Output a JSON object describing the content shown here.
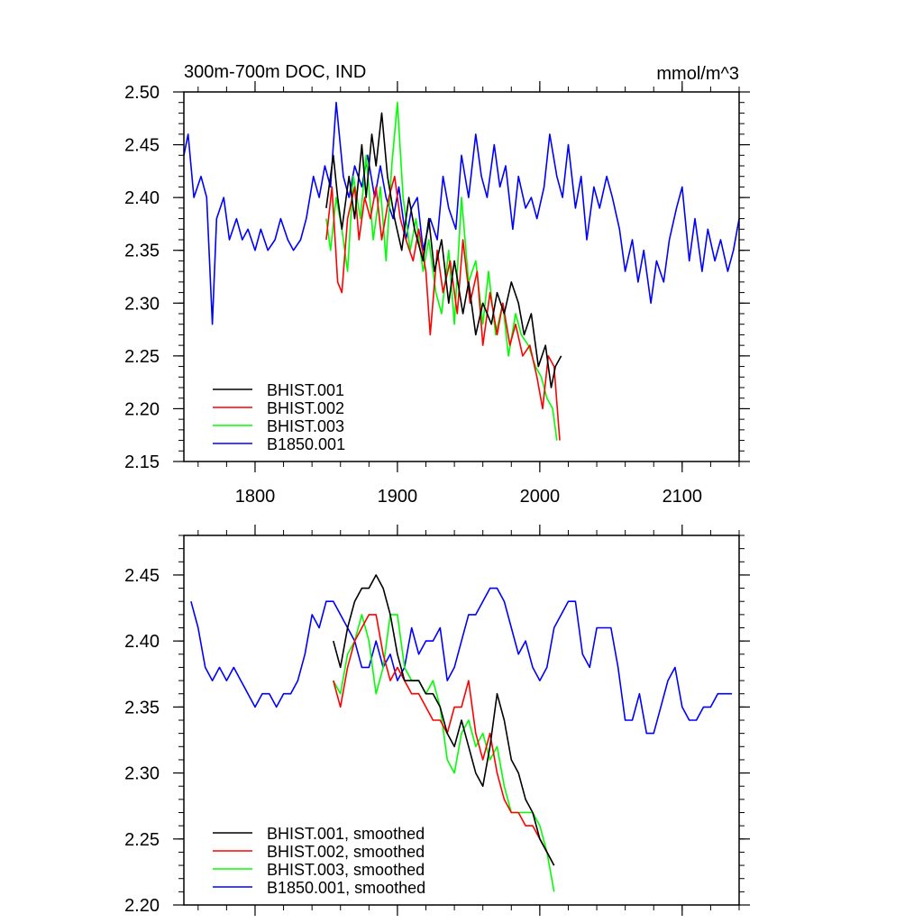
{
  "chart_data": [
    {
      "type": "line",
      "title": "300m-700m DOC, IND",
      "units": "mmol/m^3",
      "xlim": [
        1750,
        2140
      ],
      "ylim": [
        2.15,
        2.5
      ],
      "x_ticks": [
        1800,
        1900,
        2000,
        2100
      ],
      "y_ticks": [
        "2.50",
        "2.45",
        "2.40",
        "2.35",
        "2.30",
        "2.25",
        "2.20",
        "2.15"
      ],
      "legend": "bottom-left",
      "series": [
        {
          "name": "BHIST.001",
          "color": "#000000",
          "x": [
            1850,
            1855,
            1858,
            1861,
            1866,
            1870,
            1875,
            1878,
            1882,
            1885,
            1889,
            1893,
            1898,
            1903,
            1908,
            1912,
            1918,
            1922,
            1926,
            1931,
            1936,
            1940,
            1946,
            1950,
            1955,
            1960,
            1966,
            1970,
            1975,
            1980,
            1985,
            1989,
            1994,
            1999,
            2004,
            2008,
            2011,
            2015
          ],
          "y": [
            2.39,
            2.44,
            2.4,
            2.37,
            2.42,
            2.38,
            2.45,
            2.4,
            2.46,
            2.43,
            2.48,
            2.42,
            2.38,
            2.35,
            2.4,
            2.37,
            2.34,
            2.38,
            2.33,
            2.36,
            2.3,
            2.34,
            2.29,
            2.32,
            2.27,
            2.3,
            2.28,
            2.31,
            2.29,
            2.32,
            2.3,
            2.27,
            2.29,
            2.24,
            2.26,
            2.22,
            2.24,
            2.25
          ]
        },
        {
          "name": "BHIST.002",
          "color": "#ff0000",
          "x": [
            1850,
            1854,
            1858,
            1861,
            1865,
            1870,
            1873,
            1877,
            1881,
            1885,
            1889,
            1894,
            1898,
            1902,
            1906,
            1911,
            1915,
            1920,
            1923,
            1928,
            1932,
            1937,
            1942,
            1946,
            1951,
            1956,
            1960,
            1965,
            1970,
            1974,
            1979,
            1983,
            1988,
            1993,
            1998,
            2002,
            2006,
            2010,
            2014
          ],
          "y": [
            2.36,
            2.41,
            2.32,
            2.31,
            2.38,
            2.41,
            2.36,
            2.4,
            2.38,
            2.41,
            2.36,
            2.4,
            2.42,
            2.38,
            2.36,
            2.34,
            2.37,
            2.33,
            2.27,
            2.35,
            2.31,
            2.34,
            2.29,
            2.36,
            2.3,
            2.33,
            2.26,
            2.31,
            2.27,
            2.3,
            2.26,
            2.28,
            2.25,
            2.26,
            2.23,
            2.2,
            2.25,
            2.24,
            2.17
          ]
        },
        {
          "name": "BHIST.003",
          "color": "#00ff00",
          "x": [
            1850,
            1853,
            1857,
            1861,
            1865,
            1869,
            1874,
            1878,
            1883,
            1888,
            1892,
            1896,
            1900,
            1904,
            1909,
            1913,
            1918,
            1922,
            1927,
            1931,
            1936,
            1940,
            1945,
            1950,
            1955,
            1960,
            1964,
            1969,
            1974,
            1978,
            1983,
            1987,
            1992,
            1997,
            2001,
            2005,
            2009,
            2012
          ],
          "y": [
            2.38,
            2.35,
            2.4,
            2.37,
            2.33,
            2.42,
            2.38,
            2.44,
            2.36,
            2.41,
            2.34,
            2.43,
            2.49,
            2.4,
            2.35,
            2.38,
            2.33,
            2.36,
            2.31,
            2.29,
            2.35,
            2.28,
            2.4,
            2.32,
            2.34,
            2.28,
            2.33,
            2.27,
            2.3,
            2.25,
            2.29,
            2.27,
            2.26,
            2.24,
            2.23,
            2.21,
            2.2,
            2.17
          ]
        },
        {
          "name": "B1850.001",
          "color": "#0000ff",
          "x": [
            1750,
            1753,
            1757,
            1762,
            1766,
            1770,
            1773,
            1778,
            1782,
            1787,
            1791,
            1795,
            1800,
            1804,
            1809,
            1814,
            1818,
            1823,
            1827,
            1832,
            1836,
            1841,
            1845,
            1849,
            1853,
            1857,
            1862,
            1866,
            1870,
            1875,
            1879,
            1884,
            1888,
            1892,
            1897,
            1901,
            1906,
            1910,
            1914,
            1918,
            1923,
            1928,
            1932,
            1936,
            1941,
            1945,
            1950,
            1955,
            1959,
            1963,
            1968,
            1972,
            1976,
            1981,
            1985,
            1990,
            1994,
            1998,
            2003,
            2007,
            2012,
            2016,
            2020,
            2025,
            2029,
            2033,
            2038,
            2042,
            2047,
            2051,
            2056,
            2060,
            2065,
            2069,
            2073,
            2078,
            2082,
            2087,
            2091,
            2096,
            2100,
            2105,
            2109,
            2114,
            2118,
            2123,
            2127,
            2132,
            2136,
            2140
          ],
          "y": [
            2.44,
            2.46,
            2.4,
            2.42,
            2.4,
            2.28,
            2.38,
            2.4,
            2.36,
            2.38,
            2.36,
            2.37,
            2.35,
            2.37,
            2.35,
            2.36,
            2.38,
            2.36,
            2.35,
            2.36,
            2.38,
            2.42,
            2.4,
            2.43,
            2.41,
            2.49,
            2.42,
            2.4,
            2.43,
            2.41,
            2.44,
            2.4,
            2.43,
            2.4,
            2.38,
            2.41,
            2.36,
            2.39,
            2.4,
            2.35,
            2.38,
            2.36,
            2.42,
            2.39,
            2.37,
            2.44,
            2.4,
            2.46,
            2.42,
            2.4,
            2.45,
            2.41,
            2.43,
            2.37,
            2.42,
            2.39,
            2.4,
            2.38,
            2.41,
            2.46,
            2.42,
            2.4,
            2.45,
            2.39,
            2.42,
            2.36,
            2.41,
            2.39,
            2.42,
            2.4,
            2.37,
            2.33,
            2.36,
            2.32,
            2.35,
            2.3,
            2.34,
            2.32,
            2.36,
            2.39,
            2.41,
            2.34,
            2.38,
            2.33,
            2.37,
            2.34,
            2.36,
            2.33,
            2.35,
            2.38
          ]
        }
      ]
    },
    {
      "type": "line",
      "title": "",
      "xlim": [
        1750,
        2140
      ],
      "ylim": [
        2.2,
        2.48
      ],
      "x_ticks": [
        1800,
        1900,
        2000,
        2100
      ],
      "y_ticks": [
        "2.45",
        "2.40",
        "2.35",
        "2.30",
        "2.25",
        "2.20"
      ],
      "legend": "bottom-left",
      "series": [
        {
          "name": "BHIST.001, smoothed",
          "color": "#000000",
          "x": [
            1855,
            1860,
            1865,
            1870,
            1875,
            1880,
            1885,
            1890,
            1895,
            1900,
            1905,
            1910,
            1915,
            1920,
            1925,
            1930,
            1935,
            1940,
            1945,
            1950,
            1955,
            1960,
            1965,
            1970,
            1975,
            1980,
            1985,
            1990,
            1995,
            2000,
            2005,
            2010
          ],
          "y": [
            2.4,
            2.38,
            2.41,
            2.43,
            2.44,
            2.44,
            2.45,
            2.44,
            2.42,
            2.39,
            2.37,
            2.37,
            2.37,
            2.36,
            2.36,
            2.35,
            2.33,
            2.32,
            2.34,
            2.32,
            2.3,
            2.29,
            2.32,
            2.36,
            2.34,
            2.31,
            2.3,
            2.28,
            2.27,
            2.25,
            2.24,
            2.23
          ]
        },
        {
          "name": "BHIST.002, smoothed",
          "color": "#ff0000",
          "x": [
            1855,
            1860,
            1865,
            1870,
            1875,
            1880,
            1885,
            1890,
            1895,
            1900,
            1905,
            1910,
            1915,
            1920,
            1925,
            1930,
            1935,
            1940,
            1945,
            1950,
            1955,
            1960,
            1965,
            1970,
            1975,
            1980,
            1985,
            1990,
            1995,
            2000,
            2005,
            2010
          ],
          "y": [
            2.37,
            2.35,
            2.38,
            2.4,
            2.41,
            2.42,
            2.42,
            2.39,
            2.37,
            2.38,
            2.37,
            2.36,
            2.36,
            2.35,
            2.34,
            2.34,
            2.33,
            2.35,
            2.35,
            2.37,
            2.33,
            2.31,
            2.33,
            2.3,
            2.28,
            2.27,
            2.27,
            2.26,
            2.26,
            2.25,
            2.24,
            2.23
          ]
        },
        {
          "name": "BHIST.003, smoothed",
          "color": "#00ff00",
          "x": [
            1855,
            1860,
            1865,
            1870,
            1875,
            1880,
            1885,
            1890,
            1895,
            1900,
            1905,
            1910,
            1915,
            1920,
            1925,
            1930,
            1935,
            1940,
            1945,
            1950,
            1955,
            1960,
            1965,
            1970,
            1975,
            1980,
            1985,
            1990,
            1995,
            2000,
            2005,
            2010
          ],
          "y": [
            2.37,
            2.36,
            2.39,
            2.4,
            2.42,
            2.4,
            2.36,
            2.38,
            2.42,
            2.42,
            2.38,
            2.37,
            2.37,
            2.36,
            2.37,
            2.35,
            2.31,
            2.3,
            2.33,
            2.34,
            2.32,
            2.33,
            2.31,
            2.32,
            2.29,
            2.27,
            2.27,
            2.27,
            2.27,
            2.26,
            2.24,
            2.21
          ]
        },
        {
          "name": "B1850.001, smoothed",
          "color": "#0000ff",
          "x": [
            1755,
            1760,
            1765,
            1770,
            1775,
            1780,
            1785,
            1790,
            1795,
            1800,
            1805,
            1810,
            1815,
            1820,
            1825,
            1830,
            1835,
            1840,
            1845,
            1850,
            1855,
            1860,
            1865,
            1870,
            1875,
            1880,
            1885,
            1890,
            1895,
            1900,
            1905,
            1910,
            1915,
            1920,
            1925,
            1930,
            1935,
            1940,
            1945,
            1950,
            1955,
            1960,
            1965,
            1970,
            1975,
            1980,
            1985,
            1990,
            1995,
            2000,
            2005,
            2010,
            2015,
            2020,
            2025,
            2030,
            2035,
            2040,
            2045,
            2050,
            2055,
            2060,
            2065,
            2070,
            2075,
            2080,
            2085,
            2090,
            2095,
            2100,
            2105,
            2110,
            2115,
            2120,
            2125,
            2130,
            2135
          ],
          "y": [
            2.43,
            2.41,
            2.38,
            2.37,
            2.38,
            2.37,
            2.38,
            2.37,
            2.36,
            2.35,
            2.36,
            2.36,
            2.35,
            2.36,
            2.36,
            2.37,
            2.39,
            2.42,
            2.41,
            2.43,
            2.43,
            2.42,
            2.41,
            2.4,
            2.38,
            2.38,
            2.4,
            2.38,
            2.39,
            2.37,
            2.38,
            2.41,
            2.39,
            2.4,
            2.4,
            2.41,
            2.37,
            2.38,
            2.4,
            2.42,
            2.42,
            2.43,
            2.44,
            2.44,
            2.43,
            2.41,
            2.39,
            2.4,
            2.38,
            2.37,
            2.38,
            2.41,
            2.42,
            2.43,
            2.43,
            2.39,
            2.38,
            2.41,
            2.41,
            2.41,
            2.38,
            2.34,
            2.34,
            2.36,
            2.33,
            2.33,
            2.35,
            2.37,
            2.38,
            2.35,
            2.34,
            2.34,
            2.35,
            2.35,
            2.36,
            2.36,
            2.36
          ]
        }
      ]
    }
  ]
}
